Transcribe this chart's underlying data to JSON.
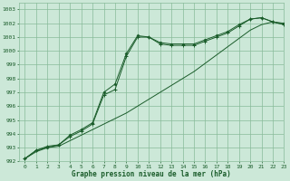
{
  "title": "Graphe pression niveau de la mer (hPa)",
  "background_color": "#cce8d8",
  "grid_color": "#88bb99",
  "line_color": "#1a5c2a",
  "xlim": [
    -0.5,
    23
  ],
  "ylim": [
    992,
    1003.5
  ],
  "xticks": [
    0,
    1,
    2,
    3,
    4,
    5,
    6,
    7,
    8,
    9,
    10,
    11,
    12,
    13,
    14,
    15,
    16,
    17,
    18,
    19,
    20,
    21,
    22,
    23
  ],
  "yticks": [
    992,
    993,
    994,
    995,
    996,
    997,
    998,
    999,
    1000,
    1001,
    1002,
    1003
  ],
  "series1_x": [
    0,
    1,
    2,
    3,
    4,
    5,
    6,
    7,
    8,
    9,
    10,
    11,
    12,
    13,
    14,
    15,
    16,
    17,
    18,
    19,
    20,
    21,
    22,
    23
  ],
  "series1_y": [
    992.2,
    992.7,
    993.0,
    993.1,
    993.5,
    993.9,
    994.3,
    994.7,
    995.1,
    995.5,
    996.0,
    996.5,
    997.0,
    997.5,
    998.0,
    998.5,
    999.1,
    999.7,
    1000.3,
    1000.9,
    1001.5,
    1001.9,
    1002.1,
    1001.9
  ],
  "series2_x": [
    0,
    1,
    2,
    3,
    4,
    5,
    6,
    7,
    8,
    9,
    10,
    11,
    12,
    13,
    14,
    15,
    16,
    17,
    18,
    19,
    20,
    21,
    22,
    23
  ],
  "series2_y": [
    992.2,
    992.8,
    993.1,
    993.2,
    993.8,
    994.2,
    994.7,
    996.8,
    997.2,
    999.6,
    1001.0,
    1001.0,
    1000.5,
    1000.4,
    1000.4,
    1000.4,
    1000.7,
    1001.0,
    1001.3,
    1001.8,
    1002.3,
    1002.4,
    1002.1,
    1001.9
  ],
  "series3_x": [
    0,
    1,
    2,
    3,
    4,
    5,
    6,
    7,
    8,
    9,
    10,
    11,
    12,
    13,
    14,
    15,
    16,
    17,
    18,
    19,
    20,
    21,
    22,
    23
  ],
  "series3_y": [
    992.2,
    992.8,
    993.0,
    993.2,
    993.9,
    994.3,
    994.8,
    997.0,
    997.6,
    999.8,
    1001.1,
    1001.0,
    1000.6,
    1000.5,
    1000.5,
    1000.5,
    1000.8,
    1001.1,
    1001.4,
    1001.9,
    1002.3,
    1002.4,
    1002.1,
    1002.0
  ]
}
